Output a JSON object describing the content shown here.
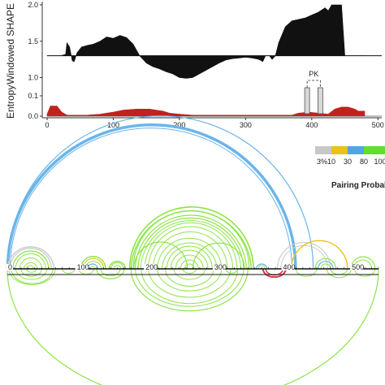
{
  "chart_data": [
    {
      "type": "area",
      "ylabel": "Windowed SHAPE",
      "yticks": [
        "2.0",
        "1.5",
        "1.0"
      ],
      "baseline": 1.3,
      "ylim": [
        0.95,
        2.0
      ],
      "fill_color": "#111111",
      "points": [
        [
          0,
          1.3
        ],
        [
          10,
          1.3
        ],
        [
          20,
          1.3
        ],
        [
          28,
          1.32
        ],
        [
          30,
          1.48
        ],
        [
          34,
          1.42
        ],
        [
          38,
          1.23
        ],
        [
          41,
          1.22
        ],
        [
          45,
          1.34
        ],
        [
          52,
          1.42
        ],
        [
          60,
          1.44
        ],
        [
          70,
          1.46
        ],
        [
          80,
          1.5
        ],
        [
          90,
          1.56
        ],
        [
          100,
          1.54
        ],
        [
          110,
          1.58
        ],
        [
          120,
          1.55
        ],
        [
          130,
          1.46
        ],
        [
          140,
          1.3
        ],
        [
          150,
          1.2
        ],
        [
          160,
          1.15
        ],
        [
          170,
          1.12
        ],
        [
          180,
          1.08
        ],
        [
          190,
          1.05
        ],
        [
          200,
          1.0
        ],
        [
          210,
          0.99
        ],
        [
          220,
          1.0
        ],
        [
          230,
          1.05
        ],
        [
          240,
          1.1
        ],
        [
          250,
          1.15
        ],
        [
          260,
          1.2
        ],
        [
          270,
          1.24
        ],
        [
          280,
          1.26
        ],
        [
          290,
          1.27
        ],
        [
          300,
          1.28
        ],
        [
          310,
          1.27
        ],
        [
          320,
          1.25
        ],
        [
          326,
          1.22
        ],
        [
          330,
          1.3
        ],
        [
          336,
          1.3
        ],
        [
          340,
          1.25
        ],
        [
          345,
          1.3
        ],
        [
          350,
          1.48
        ],
        [
          360,
          1.7
        ],
        [
          370,
          1.78
        ],
        [
          380,
          1.8
        ],
        [
          390,
          1.82
        ],
        [
          400,
          1.86
        ],
        [
          410,
          1.9
        ],
        [
          420,
          1.96
        ],
        [
          425,
          1.92
        ],
        [
          430,
          2.0
        ],
        [
          445,
          2.0
        ],
        [
          450,
          1.3
        ],
        [
          470,
          1.3
        ],
        [
          480,
          1.3
        ]
      ]
    },
    {
      "type": "area",
      "ylabel": "Entropy",
      "yticks": [
        "0.1",
        "0.0"
      ],
      "ylim": [
        0,
        0.12
      ],
      "fill_color": "#c0221e",
      "points": [
        [
          0,
          0.01
        ],
        [
          5,
          0.05
        ],
        [
          15,
          0.05
        ],
        [
          22,
          0.02
        ],
        [
          30,
          0.005
        ],
        [
          60,
          0.005
        ],
        [
          80,
          0.01
        ],
        [
          100,
          0.02
        ],
        [
          115,
          0.03
        ],
        [
          135,
          0.035
        ],
        [
          155,
          0.035
        ],
        [
          175,
          0.025
        ],
        [
          185,
          0.015
        ],
        [
          200,
          0.01
        ],
        [
          220,
          0.005
        ],
        [
          370,
          0.005
        ],
        [
          380,
          0.015
        ],
        [
          395,
          0.02
        ],
        [
          410,
          0.015
        ],
        [
          425,
          0.01
        ],
        [
          435,
          0.035
        ],
        [
          445,
          0.045
        ],
        [
          455,
          0.045
        ],
        [
          465,
          0.035
        ],
        [
          470,
          0.025
        ],
        [
          480,
          0.025
        ]
      ]
    },
    {
      "type": "arc",
      "xticks": [
        "0",
        "100",
        "200",
        "300",
        "400",
        "500"
      ],
      "xtick_values": [
        0,
        100,
        200,
        300,
        400,
        500
      ],
      "xlim": [
        0,
        540
      ],
      "pk_label": "PK",
      "pk_positions": [
        393,
        413
      ],
      "legend": {
        "title": "Pairing Probabili",
        "bins": [
          {
            "label": "3%",
            "color": "#c8c8c8"
          },
          {
            "label": "10",
            "color": "#e8c31a"
          },
          {
            "label": "30",
            "color": "#4fa6e6"
          },
          {
            "label": "80",
            "color": "#5fe02a"
          },
          {
            "label": "100",
            "color": "#5fe02a"
          }
        ]
      },
      "colors": {
        "gray": "#cccccc",
        "yellow": "#e8c31a",
        "blue": "#6ab4ea",
        "green": "#8fe44a",
        "red": "#d23b4c"
      },
      "top_arcs": [
        {
          "i": 0,
          "j": 420,
          "c": "blue",
          "w": 2.5
        },
        {
          "i": 2,
          "j": 418,
          "c": "blue",
          "w": 1.2
        },
        {
          "i": 4,
          "j": 414,
          "c": "blue",
          "w": 1.0
        },
        {
          "i": 0,
          "j": 445,
          "c": "blue",
          "w": 1.2
        },
        {
          "i": 0,
          "j": 68,
          "c": "gray",
          "w": 1.5
        },
        {
          "i": 4,
          "j": 64,
          "c": "gray",
          "w": 1.2
        },
        {
          "i": 8,
          "j": 60,
          "c": "green",
          "w": 1.2
        },
        {
          "i": 12,
          "j": 56,
          "c": "green",
          "w": 1.0
        },
        {
          "i": 18,
          "j": 50,
          "c": "green",
          "w": 1.0
        },
        {
          "i": 24,
          "j": 44,
          "c": "green",
          "w": 1.0
        },
        {
          "i": 28,
          "j": 38,
          "c": "green",
          "w": 1.0
        },
        {
          "i": 107,
          "j": 143,
          "c": "green",
          "w": 1.5
        },
        {
          "i": 110,
          "j": 140,
          "c": "yellow",
          "w": 1.2
        },
        {
          "i": 113,
          "j": 137,
          "c": "green",
          "w": 1.0
        },
        {
          "i": 116,
          "j": 132,
          "c": "blue",
          "w": 1.2
        },
        {
          "i": 120,
          "j": 128,
          "c": "green",
          "w": 1.0
        },
        {
          "i": 148,
          "j": 172,
          "c": "green",
          "w": 1.5
        },
        {
          "i": 151,
          "j": 169,
          "c": "green",
          "w": 1.0
        },
        {
          "i": 155,
          "j": 165,
          "c": "green",
          "w": 1.0
        },
        {
          "i": 178,
          "j": 358,
          "c": "green",
          "w": 1.6
        },
        {
          "i": 180,
          "j": 355,
          "c": "green",
          "w": 1.4
        },
        {
          "i": 183,
          "j": 352,
          "c": "green",
          "w": 1.2
        },
        {
          "i": 186,
          "j": 348,
          "c": "green",
          "w": 1.2
        },
        {
          "i": 190,
          "j": 344,
          "c": "green",
          "w": 1.2
        },
        {
          "i": 194,
          "j": 340,
          "c": "green",
          "w": 1.0
        },
        {
          "i": 200,
          "j": 334,
          "c": "green",
          "w": 1.0
        },
        {
          "i": 205,
          "j": 328,
          "c": "green",
          "w": 1.0
        },
        {
          "i": 212,
          "j": 320,
          "c": "green",
          "w": 1.0
        },
        {
          "i": 218,
          "j": 312,
          "c": "green",
          "w": 1.0
        },
        {
          "i": 225,
          "j": 305,
          "c": "green",
          "w": 1.0
        },
        {
          "i": 232,
          "j": 298,
          "c": "green",
          "w": 1.0
        },
        {
          "i": 238,
          "j": 292,
          "c": "green",
          "w": 1.0
        },
        {
          "i": 245,
          "j": 285,
          "c": "green",
          "w": 1.0
        },
        {
          "i": 252,
          "j": 278,
          "c": "green",
          "w": 1.0
        },
        {
          "i": 258,
          "j": 272,
          "c": "green",
          "w": 1.0
        },
        {
          "i": 184,
          "j": 262,
          "c": "green",
          "w": 1.2
        },
        {
          "i": 270,
          "j": 345,
          "c": "green",
          "w": 1.2
        },
        {
          "i": 362,
          "j": 378,
          "c": "blue",
          "w": 1.2
        },
        {
          "i": 365,
          "j": 375,
          "c": "green",
          "w": 1.0
        },
        {
          "i": 393,
          "j": 470,
          "c": "gray",
          "w": 1.2
        },
        {
          "i": 398,
          "j": 466,
          "c": "gray",
          "w": 1.0
        },
        {
          "i": 413,
          "j": 495,
          "c": "yellow",
          "w": 1.4
        },
        {
          "i": 448,
          "j": 478,
          "c": "green",
          "w": 1.2
        },
        {
          "i": 452,
          "j": 474,
          "c": "blue",
          "w": 1.2
        },
        {
          "i": 456,
          "j": 470,
          "c": "green",
          "w": 1.0
        },
        {
          "i": 500,
          "j": 535,
          "c": "green",
          "w": 1.2
        },
        {
          "i": 504,
          "j": 530,
          "c": "green",
          "w": 1.0
        }
      ],
      "bottom_arcs": [
        {
          "i": 0,
          "j": 540,
          "c": "green",
          "w": 1.2
        },
        {
          "i": 2,
          "j": 70,
          "c": "green",
          "w": 1.0
        },
        {
          "i": 6,
          "j": 66,
          "c": "green",
          "w": 1.0
        },
        {
          "i": 12,
          "j": 58,
          "c": "green",
          "w": 1.0
        },
        {
          "i": 20,
          "j": 50,
          "c": "green",
          "w": 1.0
        },
        {
          "i": 28,
          "j": 42,
          "c": "green",
          "w": 1.0
        },
        {
          "i": 80,
          "j": 98,
          "c": "green",
          "w": 1.0
        },
        {
          "i": 104,
          "j": 126,
          "c": "green",
          "w": 1.0
        },
        {
          "i": 130,
          "j": 170,
          "c": "green",
          "w": 1.2
        },
        {
          "i": 136,
          "j": 164,
          "c": "green",
          "w": 1.0
        },
        {
          "i": 180,
          "j": 350,
          "c": "green",
          "w": 1.2
        },
        {
          "i": 186,
          "j": 344,
          "c": "green",
          "w": 1.0
        },
        {
          "i": 195,
          "j": 335,
          "c": "green",
          "w": 1.0
        },
        {
          "i": 205,
          "j": 325,
          "c": "green",
          "w": 1.0
        },
        {
          "i": 218,
          "j": 312,
          "c": "green",
          "w": 1.0
        },
        {
          "i": 230,
          "j": 300,
          "c": "green",
          "w": 1.0
        },
        {
          "i": 242,
          "j": 288,
          "c": "green",
          "w": 1.0
        },
        {
          "i": 255,
          "j": 275,
          "c": "green",
          "w": 1.0
        },
        {
          "i": 318,
          "j": 335,
          "c": "green",
          "w": 1.0
        },
        {
          "i": 372,
          "j": 405,
          "c": "red",
          "w": 2.0
        },
        {
          "i": 376,
          "j": 401,
          "c": "red",
          "w": 1.5
        },
        {
          "i": 420,
          "j": 450,
          "c": "green",
          "w": 1.0
        },
        {
          "i": 465,
          "j": 500,
          "c": "green",
          "w": 1.0
        },
        {
          "i": 470,
          "j": 495,
          "c": "green",
          "w": 1.0
        },
        {
          "i": 505,
          "j": 535,
          "c": "green",
          "w": 1.0
        }
      ]
    }
  ]
}
